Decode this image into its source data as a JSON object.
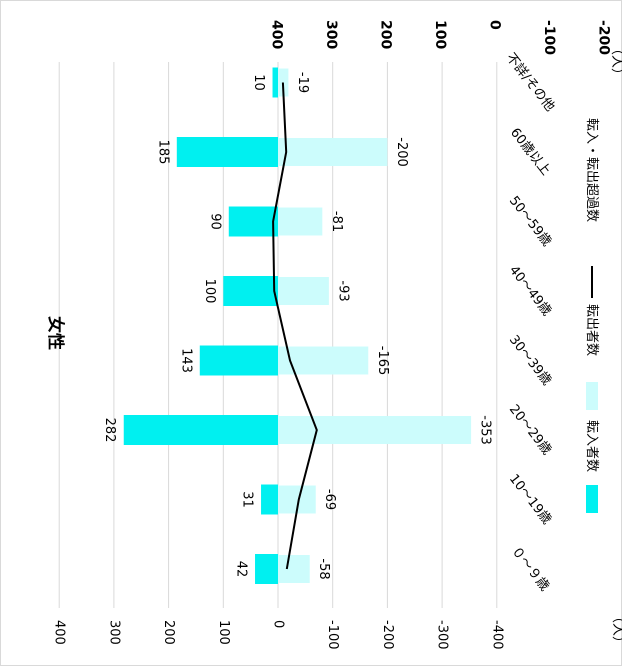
{
  "chart_data": {
    "type": "bar",
    "title": "女性",
    "unit_left": "（人）",
    "unit_right": "（人）",
    "categories": [
      "０～９歳",
      "10～19歳",
      "20～29歳",
      "30～39歳",
      "40～49歳",
      "50～59歳",
      "60歳以上",
      "不詳/その他"
    ],
    "series": [
      {
        "name": "転入者数",
        "kind": "bar",
        "color": "#00f0f0",
        "values": [
          42,
          31,
          282,
          143,
          100,
          90,
          185,
          10
        ]
      },
      {
        "name": "転出者数",
        "kind": "bar",
        "color": "#ccfcfc",
        "values": [
          -58,
          -69,
          -353,
          -165,
          -93,
          -81,
          -200,
          -19
        ]
      },
      {
        "name": "転入・転出超過数",
        "kind": "line",
        "color": "#000000",
        "values": [
          -16,
          -38,
          -71,
          -22,
          7,
          9,
          -15,
          -9
        ]
      }
    ],
    "left_axis": {
      "range": [
        -400,
        400
      ],
      "ticks": [
        "400",
        "300",
        "200",
        "100",
        "0",
        "-100",
        "-200",
        "-300",
        "-400"
      ]
    },
    "right_axis": {
      "range": [
        -500,
        400
      ],
      "ticks": [
        "400",
        "300",
        "200",
        "100",
        "0",
        "-100",
        "-200",
        "-300",
        "-400",
        "-500"
      ]
    },
    "bar_labels": {
      "in": [
        "42",
        "31",
        "282",
        "143",
        "100",
        "90",
        "185",
        "10"
      ],
      "out": [
        "-58",
        "-69",
        "-353",
        "-165",
        "-93",
        "-81",
        "-200",
        "-19"
      ]
    },
    "grid": true,
    "legend_position": "bottom"
  }
}
